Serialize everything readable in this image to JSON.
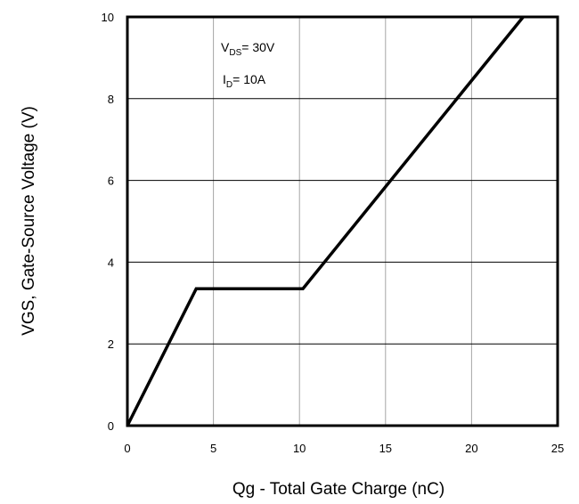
{
  "chart_data": {
    "type": "line",
    "title": "",
    "xlabel": "Qg - Total Gate Charge (nC)",
    "ylabel": "VGS, Gate-Source Voltage (V)",
    "xlim": [
      0,
      25
    ],
    "ylim": [
      0,
      10
    ],
    "xticks": [
      0,
      5,
      10,
      15,
      20,
      25
    ],
    "yticks": [
      0,
      2,
      4,
      6,
      8,
      10
    ],
    "grid": true,
    "series": [
      {
        "x": [
          0,
          4,
          10.2,
          23
        ],
        "y": [
          0,
          3.35,
          3.35,
          10
        ],
        "color": "#000000"
      }
    ],
    "annotations": [
      {
        "main": "V",
        "sub": "DS",
        "rest": "= 30V"
      },
      {
        "main": "I",
        "sub": "D",
        "rest": "= 10A"
      }
    ]
  }
}
